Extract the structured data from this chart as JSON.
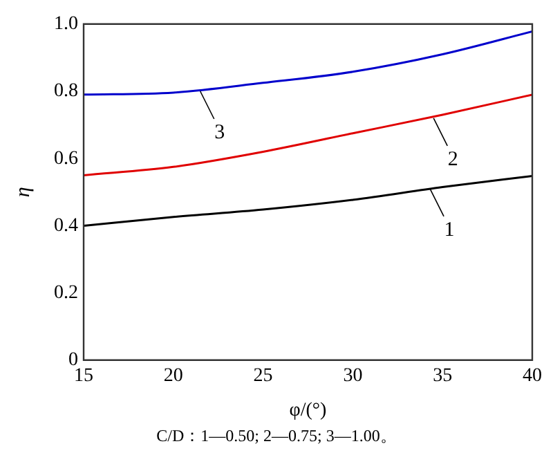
{
  "chart_data": {
    "type": "line",
    "xlabel": "φ/(°)",
    "ylabel": "η",
    "x": [
      15,
      20,
      25,
      30,
      35,
      40
    ],
    "series": [
      {
        "color": "#000000",
        "values": [
          0.4,
          0.426,
          0.448,
          0.477,
          0.515,
          0.548
        ]
      },
      {
        "color": "#e00000",
        "values": [
          0.55,
          0.575,
          0.62,
          0.675,
          0.73,
          0.79
        ]
      },
      {
        "color": "#0000cc",
        "values": [
          0.79,
          0.796,
          0.825,
          0.858,
          0.91,
          0.978
        ]
      }
    ],
    "xlim": [
      15,
      40
    ],
    "xticks": [
      15,
      20,
      25,
      30,
      35,
      40
    ],
    "ylim": [
      0,
      1
    ],
    "yticks": [
      0,
      0.2,
      0.4,
      0.6,
      0.8,
      {
        "value": 1,
        "label": "1.0"
      }
    ],
    "grid": false,
    "legend": false,
    "marker": "none",
    "line_style": "solid",
    "annotations": [
      {
        "text": "1",
        "x": 34.3,
        "y": 0.51
      },
      {
        "text": "2",
        "x": 34.5,
        "y": 0.72
      },
      {
        "text": "3",
        "x": 21.5,
        "y": 0.8
      },
      "C/D：1—0.50; 2—0.75; 3—1.00。"
    ]
  }
}
